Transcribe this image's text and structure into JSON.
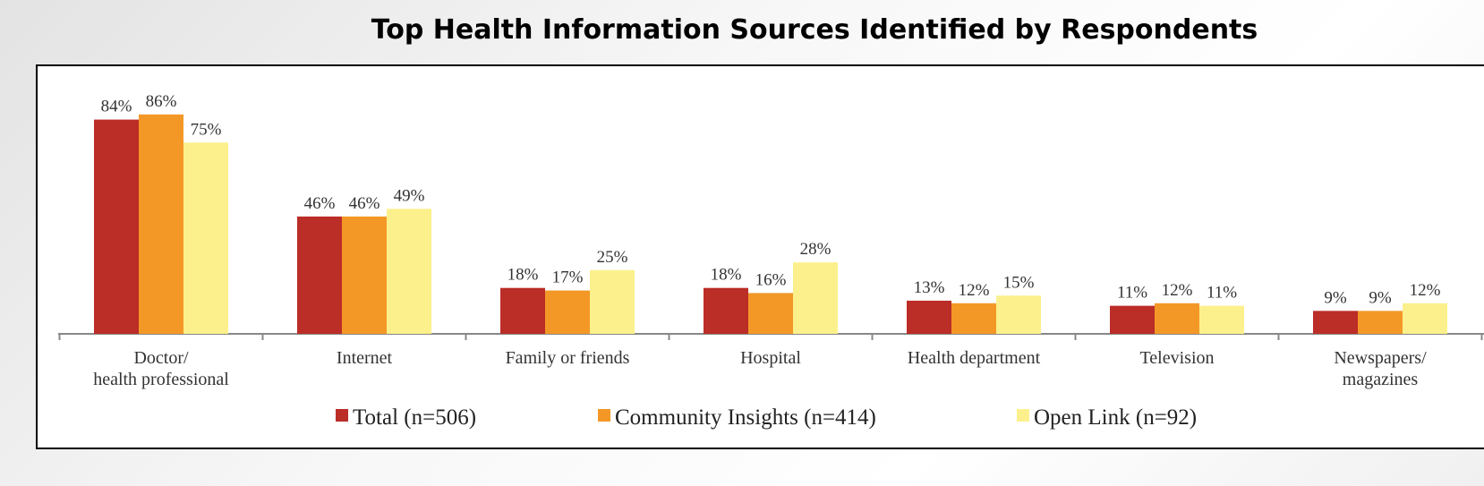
{
  "chart_data": {
    "type": "bar",
    "title": "Top Health Information Sources Identified by Respondents",
    "categories": [
      [
        "Doctor/",
        "health professional"
      ],
      [
        "Internet"
      ],
      [
        "Family or friends"
      ],
      [
        "Hospital"
      ],
      [
        "Health department"
      ],
      [
        "Television"
      ],
      [
        "Newspapers/",
        "magazines"
      ]
    ],
    "series": [
      {
        "name": "Total (n=506)",
        "color": "#bb2d27",
        "values": [
          84,
          46,
          18,
          18,
          13,
          11,
          9
        ]
      },
      {
        "name": "Community Insights (n=414)",
        "color": "#f39827",
        "values": [
          86,
          46,
          17,
          16,
          12,
          12,
          9
        ]
      },
      {
        "name": "Open Link (n=92)",
        "color": "#fbf08c",
        "values": [
          75,
          49,
          25,
          28,
          15,
          11,
          12
        ]
      }
    ],
    "value_suffix": "%",
    "ylim": [
      0,
      100
    ],
    "grid": false,
    "legend_position": "bottom"
  }
}
